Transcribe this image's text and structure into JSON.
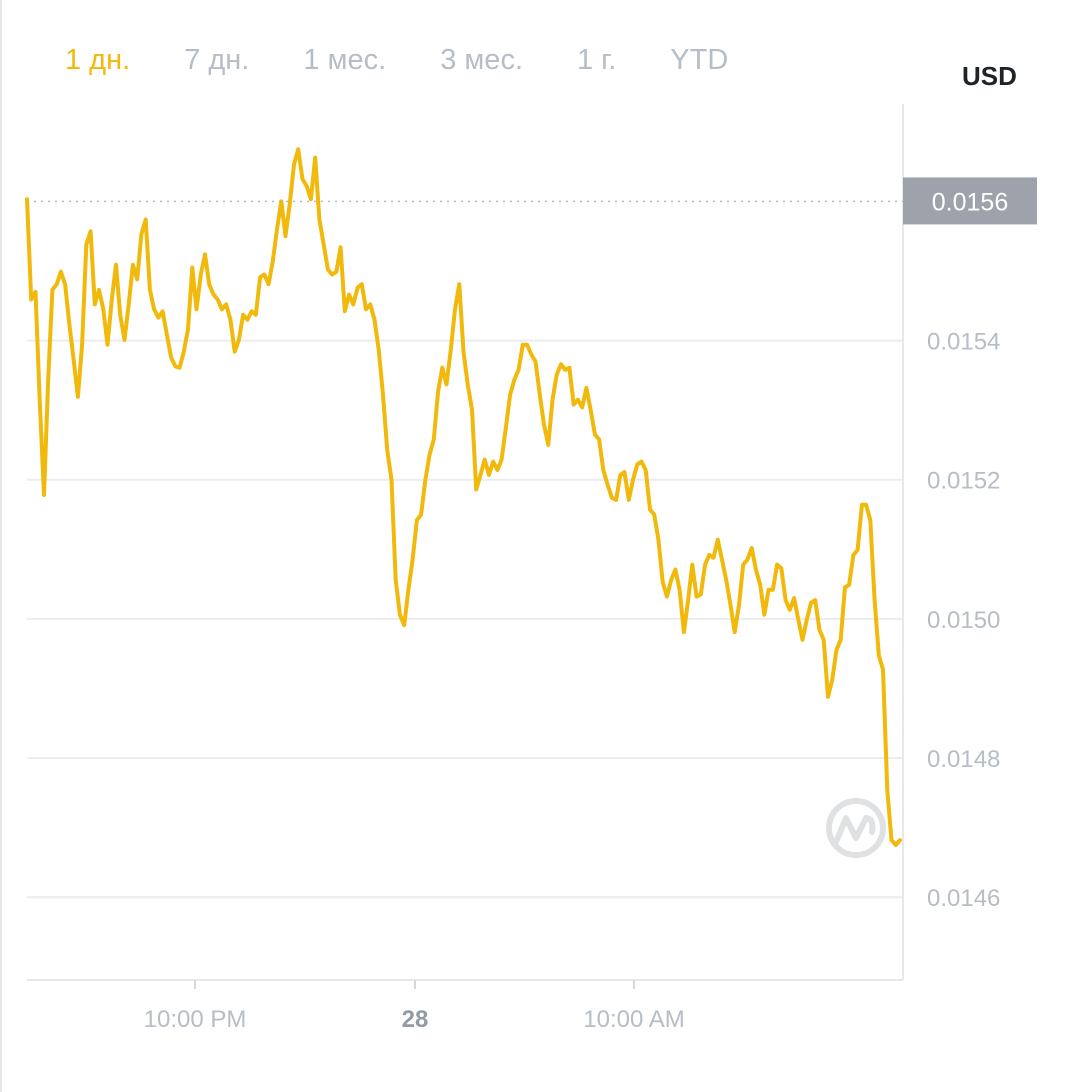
{
  "tabs": [
    {
      "label": "1 дн.",
      "active": true
    },
    {
      "label": "7 дн.",
      "active": false
    },
    {
      "label": "1 мес.",
      "active": false
    },
    {
      "label": "3 мес.",
      "active": false
    },
    {
      "label": "1 г.",
      "active": false
    },
    {
      "label": "YTD",
      "active": false
    }
  ],
  "currency": "USD",
  "watermark_icon": "coinmarketcap-logo",
  "chart_data": {
    "type": "line",
    "title": "",
    "xlabel": "",
    "ylabel": "",
    "ylim": [
      0.014481,
      0.01574
    ],
    "grid": true,
    "line_color": "#f0b90b",
    "current_price_label": "0.0156",
    "current_price_value": 0.0156,
    "y_ticks": [
      {
        "value": 0.0154,
        "label": "0.0154"
      },
      {
        "value": 0.0152,
        "label": "0.0152"
      },
      {
        "value": 0.015,
        "label": "0.0150"
      },
      {
        "value": 0.0148,
        "label": "0.0148"
      },
      {
        "value": 0.0146,
        "label": "0.0146"
      }
    ],
    "x_ticks": [
      {
        "label": "10:00 PM",
        "bold": false
      },
      {
        "label": "28",
        "bold": true
      },
      {
        "label": "10:00 AM",
        "bold": false
      }
    ],
    "values": [
      0.015603,
      0.015459,
      0.01547,
      0.015315,
      0.015178,
      0.015344,
      0.015473,
      0.015481,
      0.015499,
      0.015481,
      0.015423,
      0.015373,
      0.015319,
      0.015394,
      0.015538,
      0.015557,
      0.015452,
      0.015473,
      0.015445,
      0.015394,
      0.015459,
      0.015509,
      0.015437,
      0.015401,
      0.015452,
      0.015509,
      0.015488,
      0.015553,
      0.015574,
      0.015473,
      0.015445,
      0.015433,
      0.015442,
      0.015409,
      0.015376,
      0.015363,
      0.015361,
      0.015384,
      0.015416,
      0.015505,
      0.015445,
      0.015495,
      0.015524,
      0.015481,
      0.015466,
      0.015459,
      0.015445,
      0.015452,
      0.01543,
      0.015384,
      0.015401,
      0.015437,
      0.01543,
      0.015442,
      0.015437,
      0.015491,
      0.015495,
      0.015481,
      0.015514,
      0.01556,
      0.0156,
      0.01555,
      0.015596,
      0.015653,
      0.015675,
      0.015632,
      0.015622,
      0.015603,
      0.015663,
      0.015574,
      0.015538,
      0.015502,
      0.015495,
      0.015499,
      0.015534,
      0.015442,
      0.015466,
      0.015452,
      0.015476,
      0.015481,
      0.015445,
      0.015452,
      0.01543,
      0.015387,
      0.015322,
      0.015243,
      0.0152,
      0.015056,
      0.015006,
      0.014991,
      0.015042,
      0.015085,
      0.015142,
      0.01515,
      0.0152,
      0.015236,
      0.015258,
      0.015327,
      0.015361,
      0.015337,
      0.015387,
      0.015445,
      0.015481,
      0.015384,
      0.015337,
      0.015301,
      0.015186,
      0.015207,
      0.015229,
      0.015207,
      0.015226,
      0.015214,
      0.015229,
      0.015275,
      0.015322,
      0.015344,
      0.015358,
      0.015394,
      0.015394,
      0.01538,
      0.01537,
      0.015322,
      0.015279,
      0.01525,
      0.015315,
      0.015351,
      0.015366,
      0.015358,
      0.015361,
      0.015308,
      0.015315,
      0.015304,
      0.015332,
      0.015301,
      0.015265,
      0.015258,
      0.015214,
      0.015193,
      0.015174,
      0.015171,
      0.015207,
      0.015211,
      0.015171,
      0.0152,
      0.015222,
      0.015226,
      0.015214,
      0.015157,
      0.01515,
      0.015114,
      0.015053,
      0.015032,
      0.015056,
      0.015071,
      0.015042,
      0.014981,
      0.015027,
      0.015078,
      0.015032,
      0.015035,
      0.015078,
      0.015092,
      0.015088,
      0.015114,
      0.015085,
      0.015056,
      0.01502,
      0.014981,
      0.01502,
      0.015078,
      0.015085,
      0.015102,
      0.015071,
      0.015049,
      0.015006,
      0.015042,
      0.015042,
      0.015078,
      0.015073,
      0.015027,
      0.015013,
      0.01503,
      0.014999,
      0.01497,
      0.014999,
      0.015023,
      0.015027,
      0.014984,
      0.01497,
      0.014888,
      0.014912,
      0.014955,
      0.01497,
      0.015045,
      0.015049,
      0.015092,
      0.015099,
      0.015164,
      0.015164,
      0.015142,
      0.015027,
      0.014948,
      0.014927,
      0.014754,
      0.014682,
      0.014675,
      0.014682
    ]
  }
}
